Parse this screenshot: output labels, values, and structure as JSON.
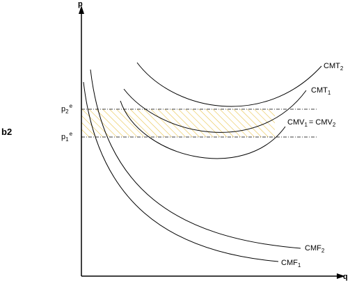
{
  "panel_label": "b2",
  "axes": {
    "y": "p",
    "x": "q"
  },
  "price_labels": [
    {
      "text": "p",
      "sub": "2",
      "sup": "e"
    },
    {
      "text": "p",
      "sub": "1",
      "sup": "e"
    }
  ],
  "curves": [
    {
      "text": "CMT",
      "sub": "2"
    },
    {
      "text": "CMT",
      "sub": "1"
    },
    {
      "text": "CMV",
      "sub": "1",
      "text2": "= CMV",
      "sub2": "2"
    },
    {
      "text": "CMF",
      "sub": "2"
    },
    {
      "text": "CMF",
      "sub": "1"
    }
  ]
}
